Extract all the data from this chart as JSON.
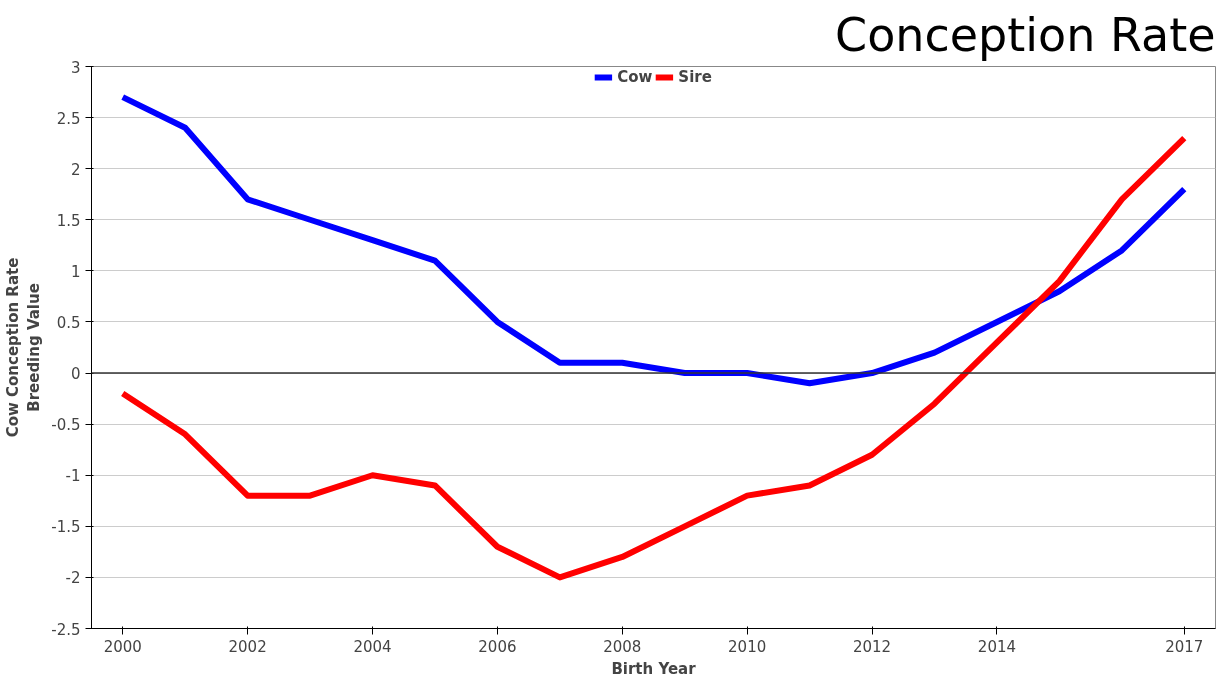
{
  "chart_data": {
    "type": "line",
    "title": "Conception Rate",
    "xlabel": "Birth Year",
    "ylabel": "Cow Conception Rate\nBreeding Value",
    "x": [
      2000,
      2001,
      2002,
      2003,
      2004,
      2005,
      2006,
      2007,
      2008,
      2009,
      2010,
      2011,
      2012,
      2013,
      2014,
      2015,
      2016,
      2017
    ],
    "series": [
      {
        "name": "Cow",
        "color": "#0000ff",
        "values": [
          2.7,
          2.4,
          1.7,
          1.5,
          1.3,
          1.1,
          0.5,
          0.1,
          0.1,
          0.0,
          0.0,
          -0.1,
          0.0,
          0.2,
          0.5,
          0.8,
          1.2,
          1.8
        ]
      },
      {
        "name": "Sire",
        "color": "#ff0000",
        "values": [
          -0.2,
          -0.6,
          -1.2,
          -1.2,
          -1.0,
          -1.1,
          -1.7,
          -2.0,
          -1.8,
          -1.5,
          -1.2,
          -1.1,
          -0.8,
          -0.3,
          0.3,
          0.9,
          1.7,
          2.3
        ]
      }
    ],
    "xlim": [
      1999.5,
      2017.5
    ],
    "xticks": [
      2000,
      2002,
      2004,
      2006,
      2008,
      2010,
      2012,
      2014,
      2017
    ],
    "ylim": [
      -2.5,
      3
    ],
    "yticks": [
      -2.5,
      -2,
      -1.5,
      -1,
      -0.5,
      0,
      0.5,
      1,
      1.5,
      2,
      2.5,
      3
    ],
    "ref_lines": [
      {
        "axis": "y",
        "value": 0,
        "label": null,
        "color": "#333333"
      }
    ],
    "grid": "y",
    "legend": "top",
    "marker": "none",
    "line_style": "solid"
  }
}
